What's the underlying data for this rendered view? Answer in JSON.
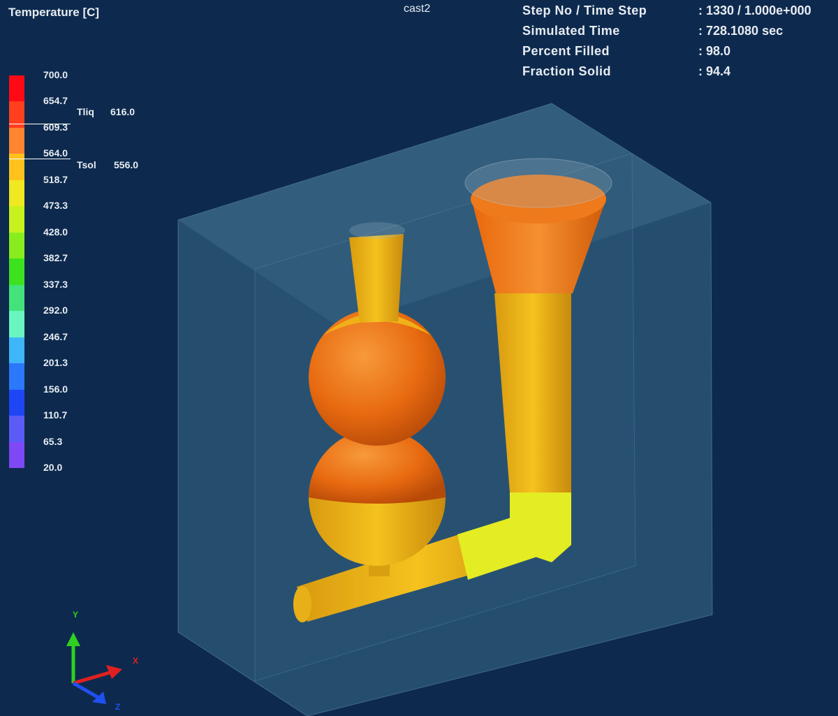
{
  "legend": {
    "title": "Temperature [C]",
    "ticks": [
      "700.0",
      "654.7",
      "609.3",
      "564.0",
      "518.7",
      "473.3",
      "428.0",
      "382.7",
      "337.3",
      "292.0",
      "246.7",
      "201.3",
      "156.0",
      "110.7",
      "65.3",
      "20.0"
    ],
    "band_colors": [
      "#ff0a14",
      "#ff3f1e",
      "#ff8530",
      "#ffc21c",
      "#f0e820",
      "#c8f21e",
      "#88ec1e",
      "#3ce21e",
      "#44e27a",
      "#6af5c0",
      "#3eb6fa",
      "#2b78fa",
      "#1e46f5",
      "#5a5cf5",
      "#7e48f5",
      "#a030f5"
    ],
    "tliq": {
      "label": "Tliq",
      "value": "616.0"
    },
    "tsol": {
      "label": "Tsol",
      "value": "556.0"
    }
  },
  "case_name": "cast2",
  "info": [
    {
      "label": "Step No / Time Step",
      "value": ": 1330 / 1.000e+000"
    },
    {
      "label": "Simulated Time",
      "value": ": 728.1080 sec"
    },
    {
      "label": "Percent Filled",
      "value": ": 98.0"
    },
    {
      "label": "Fraction Solid",
      "value": ": 94.4"
    }
  ],
  "axes": {
    "x": "X",
    "y": "Y",
    "z": "Z"
  }
}
